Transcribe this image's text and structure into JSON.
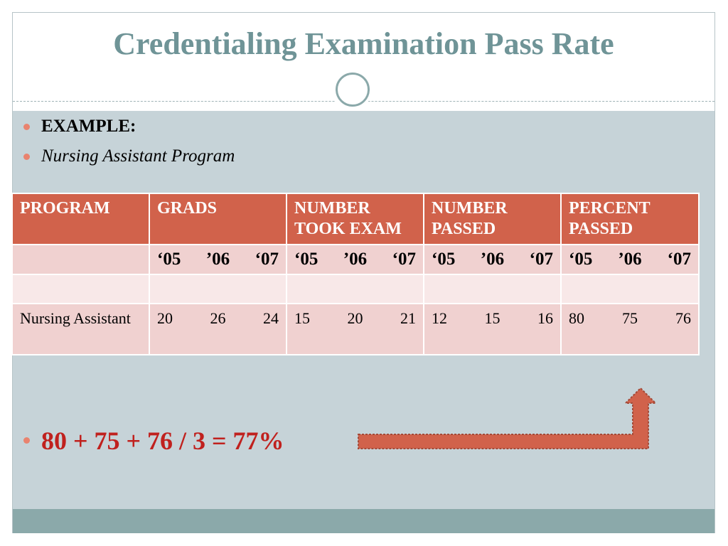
{
  "slide": {
    "title": "Credentialing Examination Pass Rate",
    "bullets": [
      {
        "text": "EXAMPLE:",
        "style": "bold"
      },
      {
        "text": "Nursing Assistant Program",
        "style": "italic"
      }
    ],
    "formula": "80 + 75 + 76 / 3 = 77%"
  },
  "table": {
    "headers": [
      "PROGRAM",
      "GRADS",
      "NUMBER TOOK EXAM",
      "NUMBER PASSED",
      "PERCENT PASSED"
    ],
    "years": {
      "grads": [
        "‘05",
        "’06",
        "‘07"
      ],
      "took": [
        "‘05",
        "’06",
        "‘07"
      ],
      "passed": [
        "‘05",
        "’06",
        "‘07"
      ],
      "percent": [
        "‘05",
        "’06",
        "‘07"
      ]
    },
    "rows": [
      {
        "program": "Nursing Assistant",
        "grads": [
          "20",
          "26",
          "24"
        ],
        "took": [
          "15",
          "20",
          "21"
        ],
        "passed": [
          "12",
          "15",
          "16"
        ],
        "percent": [
          "80",
          "75",
          "76"
        ]
      }
    ]
  },
  "colors": {
    "title": "#6f9497",
    "header_fill": "#d1624b",
    "row_fill": "#f0d1d0",
    "blank_row_fill": "#f8e8e8",
    "body_background": "#c6d3d8",
    "footer_bar": "#8ba9aa",
    "bullet": "#e9836f",
    "formula_text": "#c0211e",
    "arrow_fill": "#d1624b"
  },
  "icons": {
    "ornament": "circle-ornament-icon",
    "arrow": "elbow-arrow-up-icon"
  }
}
